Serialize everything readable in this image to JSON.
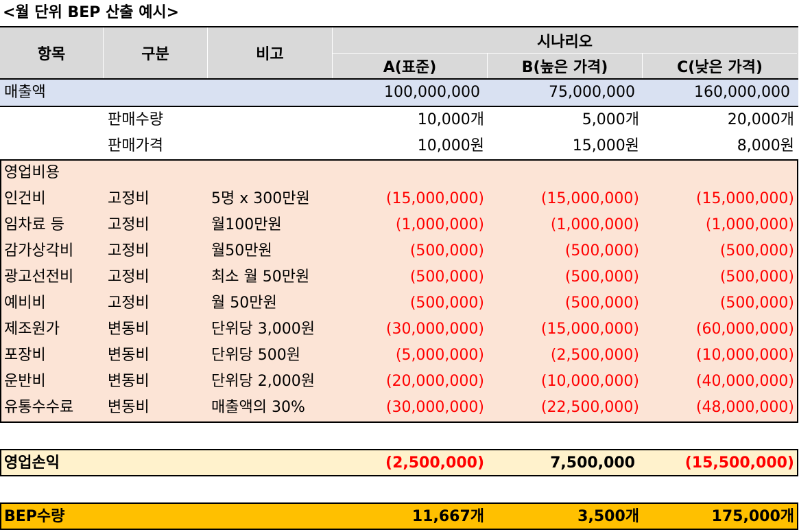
{
  "title": "<월 단위 BEP 산출 예시>",
  "header": {
    "col1": "항목",
    "col2": "구분",
    "col3": "비고",
    "scenario": "시나리오",
    "a": "A(표준)",
    "b": "B(높은 가격)",
    "c": "C(낮은 가격)"
  },
  "revenue": {
    "label": "매출액",
    "a": "100,000,000",
    "b": "75,000,000",
    "c": "160,000,000"
  },
  "quantity": {
    "label": "판매수량",
    "a": "10,000개",
    "b": "5,000개",
    "c": "20,000개"
  },
  "price": {
    "label": "판매가격",
    "a": "10,000원",
    "b": "15,000원",
    "c": "8,000원"
  },
  "opex_label": "영업비용",
  "expenses": [
    {
      "item": "인건비",
      "type": "고정비",
      "note": "5명 x 300만원",
      "a": "(15,000,000)",
      "b": "(15,000,000)",
      "c": "(15,000,000)"
    },
    {
      "item": "임차료 등",
      "type": "고정비",
      "note": "월100만원",
      "a": "(1,000,000)",
      "b": "(1,000,000)",
      "c": "(1,000,000)"
    },
    {
      "item": "감가상각비",
      "type": "고정비",
      "note": "월50만원",
      "a": "(500,000)",
      "b": "(500,000)",
      "c": "(500,000)"
    },
    {
      "item": "광고선전비",
      "type": "고정비",
      "note": "최소 월 50만원",
      "a": "(500,000)",
      "b": "(500,000)",
      "c": "(500,000)"
    },
    {
      "item": "예비비",
      "type": "고정비",
      "note": "월 50만원",
      "a": "(500,000)",
      "b": "(500,000)",
      "c": "(500,000)"
    },
    {
      "item": "제조원가",
      "type": "변동비",
      "note": "단위당 3,000원",
      "a": "(30,000,000)",
      "b": "(15,000,000)",
      "c": "(60,000,000)"
    },
    {
      "item": "포장비",
      "type": "변동비",
      "note": "단위당 500원",
      "a": "(5,000,000)",
      "b": "(2,500,000)",
      "c": "(10,000,000)"
    },
    {
      "item": "운반비",
      "type": "변동비",
      "note": "단위당 2,000원",
      "a": "(20,000,000)",
      "b": "(10,000,000)",
      "c": "(40,000,000)"
    },
    {
      "item": "유통수수료",
      "type": "변동비",
      "note": "매출액의 30%",
      "a": "(30,000,000)",
      "b": "(22,500,000)",
      "c": "(48,000,000)"
    }
  ],
  "operating_profit": {
    "label": "영업손익",
    "a": "(2,500,000)",
    "b": "7,500,000",
    "c": "(15,500,000)"
  },
  "bep": {
    "label": "BEP수량",
    "a": "11,667개",
    "b": "3,500개",
    "c": "175,000개"
  },
  "colors": {
    "header_bg": "#d9d9d9",
    "revenue_bg": "#d9e1f2",
    "expense_bg": "#fce4d6",
    "profit_bg": "#fff2cc",
    "bep_bg": "#ffc000",
    "negative": "#ff0000"
  }
}
